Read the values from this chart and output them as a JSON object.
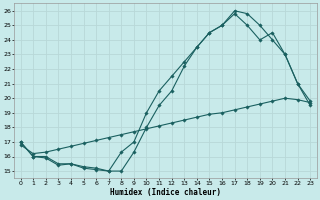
{
  "title": "",
  "xlabel": "Humidex (Indice chaleur)",
  "bg_color": "#c8eaea",
  "grid_color": "#b8d8d8",
  "line_color": "#1a6060",
  "xlim": [
    -0.5,
    23.5
  ],
  "ylim": [
    14.5,
    26.5
  ],
  "xticks": [
    0,
    1,
    2,
    3,
    4,
    5,
    6,
    7,
    8,
    9,
    10,
    11,
    12,
    13,
    14,
    15,
    16,
    17,
    18,
    19,
    20,
    21,
    22,
    23
  ],
  "yticks": [
    15,
    16,
    17,
    18,
    19,
    20,
    21,
    22,
    23,
    24,
    25,
    26
  ],
  "line1_x": [
    0,
    1,
    2,
    3,
    4,
    5,
    6,
    7,
    8,
    9,
    10,
    11,
    12,
    13,
    14,
    15,
    16,
    17,
    18,
    19,
    20,
    21,
    22,
    23
  ],
  "line1_y": [
    17.0,
    16.0,
    15.9,
    15.4,
    15.5,
    15.2,
    15.1,
    15.0,
    15.0,
    16.3,
    18.0,
    19.5,
    20.5,
    22.2,
    23.5,
    24.5,
    25.0,
    26.0,
    25.8,
    25.0,
    24.0,
    23.0,
    21.0,
    19.5
  ],
  "line2_x": [
    0,
    1,
    2,
    3,
    4,
    5,
    6,
    7,
    8,
    9,
    10,
    11,
    12,
    13,
    14,
    15,
    16,
    17,
    18,
    19,
    20,
    21,
    22,
    23
  ],
  "line2_y": [
    17.0,
    16.0,
    16.0,
    15.5,
    15.5,
    15.3,
    15.2,
    15.0,
    16.3,
    17.0,
    19.0,
    20.5,
    21.5,
    22.5,
    23.5,
    24.5,
    25.0,
    25.8,
    25.0,
    24.0,
    24.5,
    23.0,
    21.0,
    19.8
  ],
  "line3_x": [
    0,
    1,
    2,
    3,
    4,
    5,
    6,
    7,
    8,
    9,
    10,
    11,
    12,
    13,
    14,
    15,
    16,
    17,
    18,
    19,
    20,
    21,
    22,
    23
  ],
  "line3_y": [
    16.8,
    16.2,
    16.3,
    16.5,
    16.7,
    16.9,
    17.1,
    17.3,
    17.5,
    17.7,
    17.9,
    18.1,
    18.3,
    18.5,
    18.7,
    18.9,
    19.0,
    19.2,
    19.4,
    19.6,
    19.8,
    20.0,
    19.9,
    19.7
  ],
  "xlabel_fontsize": 5.5,
  "tick_fontsize": 4.5,
  "lw": 0.8,
  "ms": 1.8
}
